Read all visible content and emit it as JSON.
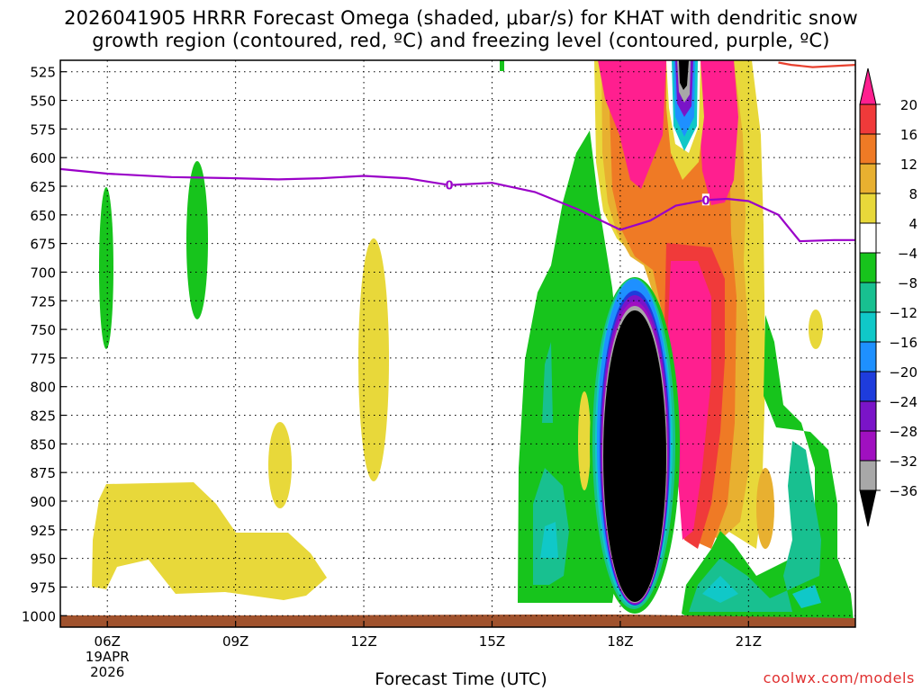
{
  "title_line1": "2026041905 HRRR Forecast Omega (shaded, μbar/s) for KHAT with dendritic snow",
  "title_line2": "growth region (contoured, red, ºC) and freezing level (contoured, purple, ºC)",
  "credit": "coolwx.com/models",
  "chart_data": {
    "type": "heatmap",
    "title": "2026041905 HRRR Forecast Omega (shaded, μbar/s) for KHAT with dendritic snow growth region (contoured, red, ºC) and freezing level (contoured, purple, ºC)",
    "xlabel": "Forecast Time (UTC)",
    "ylabel": "",
    "x_range_hours_utc": [
      4.9,
      23.5
    ],
    "y_range_hpa": [
      1010,
      515
    ],
    "y_ticks": [
      "525",
      "550",
      "575",
      "600",
      "625",
      "650",
      "675",
      "700",
      "725",
      "750",
      "775",
      "800",
      "825",
      "850",
      "875",
      "900",
      "925",
      "950",
      "975",
      "1000"
    ],
    "x_ticks": [
      {
        "label": "06Z",
        "sub1": "19APR",
        "sub2": "2026"
      },
      {
        "label": "09Z",
        "sub1": "",
        "sub2": ""
      },
      {
        "label": "12Z",
        "sub1": "",
        "sub2": ""
      },
      {
        "label": "15Z",
        "sub1": "",
        "sub2": ""
      },
      {
        "label": "18Z",
        "sub1": "",
        "sub2": ""
      },
      {
        "label": "21Z",
        "sub1": "",
        "sub2": ""
      }
    ],
    "grid": true,
    "colorbar": {
      "labels": [
        "20",
        "16",
        "12",
        "8",
        "4",
        "−4",
        "−8",
        "−12",
        "−16",
        "−20",
        "−24",
        "−28",
        "−32",
        "−36"
      ],
      "colors": [
        "#ff1f8f",
        "#f03a3a",
        "#ef7a25",
        "#e8b030",
        "#e8d83a",
        "#ffffff",
        "#17c41c",
        "#18c090",
        "#10c8c8",
        "#1e90ff",
        "#1e3cdc",
        "#7a14c8",
        "#a010c0",
        "#a8a8a8",
        "#000000"
      ]
    },
    "freezing_level_label": "0",
    "freezing_level_hpa": [
      [
        4.9,
        610
      ],
      [
        6,
        614
      ],
      [
        7.5,
        617
      ],
      [
        9,
        618
      ],
      [
        10,
        619
      ],
      [
        11,
        618
      ],
      [
        12,
        616
      ],
      [
        13,
        618
      ],
      [
        14,
        624
      ],
      [
        15,
        622
      ],
      [
        16,
        630
      ],
      [
        17,
        645
      ],
      [
        18,
        663
      ],
      [
        18.7,
        655
      ],
      [
        19.3,
        642
      ],
      [
        20,
        637
      ],
      [
        20.5,
        636
      ],
      [
        21,
        638
      ],
      [
        21.7,
        650
      ],
      [
        22.2,
        673
      ],
      [
        23,
        672
      ],
      [
        23.5,
        672
      ]
    ],
    "dendritic_region_hpa": [
      [
        21.7,
        517
      ],
      [
        22,
        519
      ],
      [
        22.5,
        521
      ],
      [
        23,
        520
      ],
      [
        23.5,
        519
      ]
    ],
    "terrain_color": "#a0522d"
  }
}
